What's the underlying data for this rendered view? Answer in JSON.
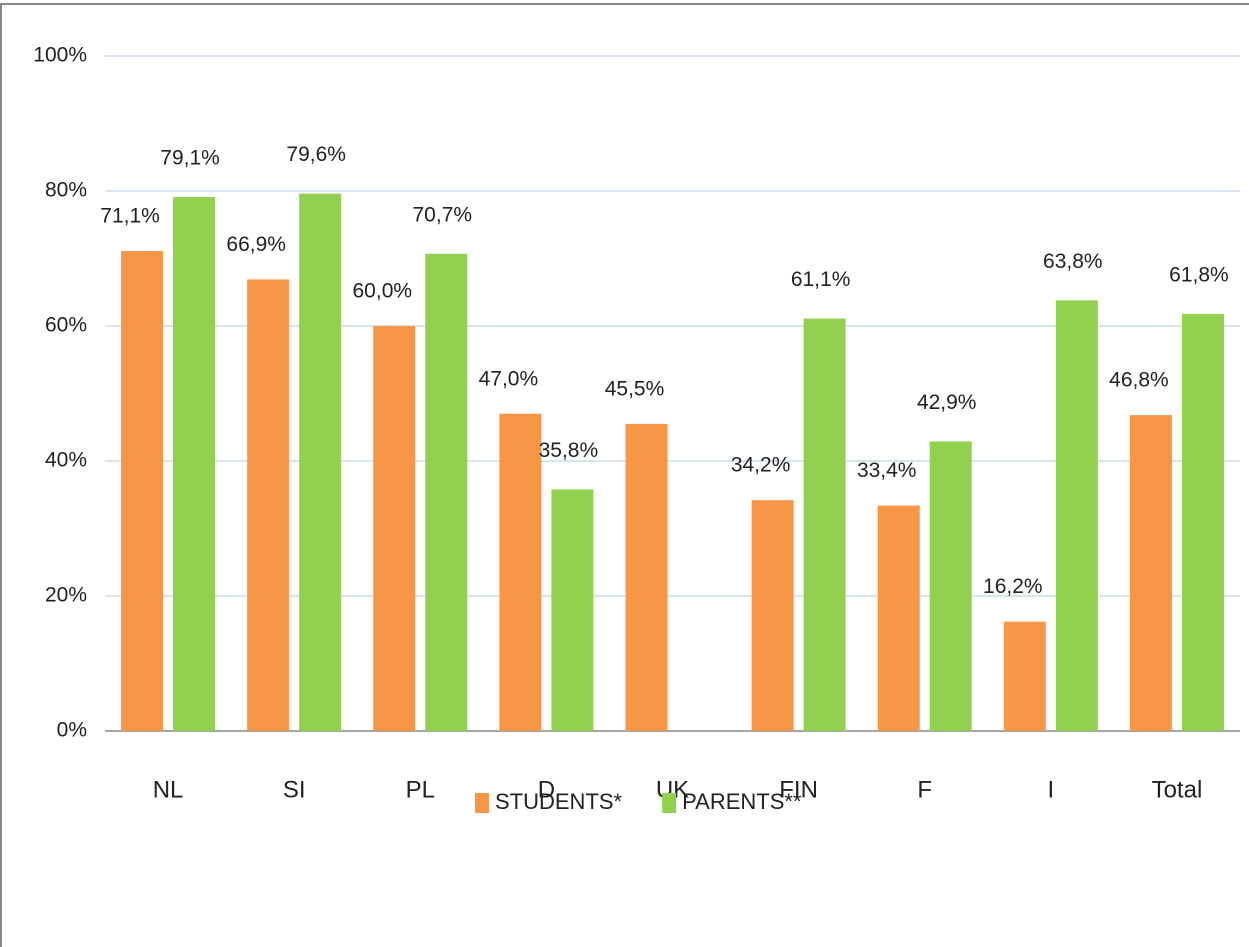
{
  "chart_data": {
    "type": "bar",
    "categories": [
      "NL",
      "SI",
      "PL",
      "D",
      "UK",
      "FIN",
      "F",
      "I",
      "Total"
    ],
    "series": [
      {
        "name": "STUDENTS*",
        "color": "#f79646",
        "values": [
          71.1,
          66.9,
          60.0,
          47.0,
          45.5,
          34.2,
          33.4,
          16.2,
          46.8
        ],
        "value_labels": [
          "71,1%",
          "66,9%",
          "60,0%",
          "47,0%",
          "45,5%",
          "34,2%",
          "33,4%",
          "16,2%",
          "46,8%"
        ]
      },
      {
        "name": "PARENTS**",
        "color": "#92d050",
        "values": [
          79.1,
          79.6,
          70.7,
          35.8,
          null,
          61.1,
          42.9,
          63.8,
          61.8
        ],
        "value_labels": [
          "79,1%",
          "79,6%",
          "70,7%",
          "35,8%",
          null,
          "61,1%",
          "42,9%",
          "63,8%",
          "61,8%"
        ]
      }
    ],
    "ylim": [
      0,
      100
    ],
    "yticks": [
      {
        "value": 0,
        "label": "0%"
      },
      {
        "value": 20,
        "label": "20%"
      },
      {
        "value": 40,
        "label": "40%"
      },
      {
        "value": 60,
        "label": "60%"
      },
      {
        "value": 80,
        "label": "80%"
      },
      {
        "value": 100,
        "label": "100%"
      }
    ],
    "grid": true,
    "legend": "bottom"
  }
}
